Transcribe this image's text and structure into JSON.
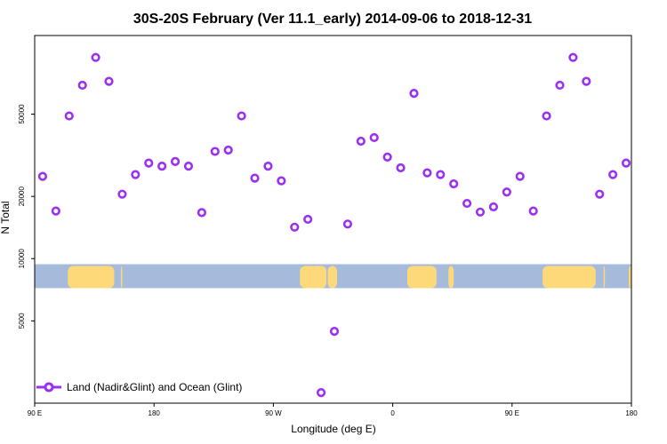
{
  "chart_data": {
    "type": "scatter",
    "title": "30S-20S February (Ver 11.1_early)   2014-09-06 to 2018-12-31",
    "xlabel": "Longitude (deg E)",
    "ylabel": "N Total",
    "yscale": "log",
    "xlim": [
      90,
      540
    ],
    "ylim": [
      2000,
      120000
    ],
    "x_ticks": [
      {
        "value": 90,
        "label": "90 E"
      },
      {
        "value": 180,
        "label": "180"
      },
      {
        "value": 270,
        "label": "90 W"
      },
      {
        "value": 360,
        "label": "0"
      },
      {
        "value": 450,
        "label": "90 E"
      },
      {
        "value": 540,
        "label": "180"
      }
    ],
    "y_ticks": [
      {
        "value": 5000,
        "label": "5000"
      },
      {
        "value": 10000,
        "label": "10000"
      },
      {
        "value": 20000,
        "label": "20000"
      },
      {
        "value": 50000,
        "label": "50000"
      }
    ],
    "series": [
      {
        "name": "Land (Nadir&Glint) and Ocean (Glint)",
        "color": "#9b30f0",
        "x": [
          96,
          106,
          116,
          126,
          136,
          146,
          156,
          166,
          176,
          186,
          196,
          206,
          216,
          226,
          236,
          246,
          256,
          266,
          276,
          286,
          296,
          306,
          316,
          326,
          336,
          346,
          356,
          366,
          376,
          386,
          396,
          406,
          416,
          426,
          436,
          446,
          456,
          466,
          476,
          486,
          496,
          506,
          516,
          526,
          536
        ],
        "y": [
          25000,
          17000,
          49000,
          69000,
          94000,
          72000,
          20500,
          25500,
          29000,
          28000,
          29500,
          28000,
          16700,
          33000,
          33500,
          49000,
          24500,
          28000,
          23800,
          14200,
          15500,
          2250,
          4450,
          14700,
          37000,
          38500,
          31000,
          27500,
          63000,
          26000,
          25500,
          23000,
          18500,
          16800,
          17800,
          21000,
          25000,
          17000,
          49000,
          69000,
          94000,
          72000,
          20500,
          25500,
          29000
        ]
      }
    ],
    "legend": {
      "position": "bottom-left",
      "label": "Land (Nadir&Glint) and Ocean (Glint)"
    },
    "map_strip": {
      "description": "land/ocean mask band",
      "ocean_color": "#a6bbdc",
      "land_color": "#fed97a",
      "y_range": [
        7200,
        9400
      ],
      "land_segments": [
        [
          115,
          150
        ],
        [
          155,
          156
        ],
        [
          290,
          310
        ],
        [
          311,
          318
        ],
        [
          371,
          393
        ],
        [
          402,
          406
        ],
        [
          538,
          540
        ],
        [
          473,
          513
        ],
        [
          519,
          520
        ]
      ]
    },
    "grid": false
  }
}
